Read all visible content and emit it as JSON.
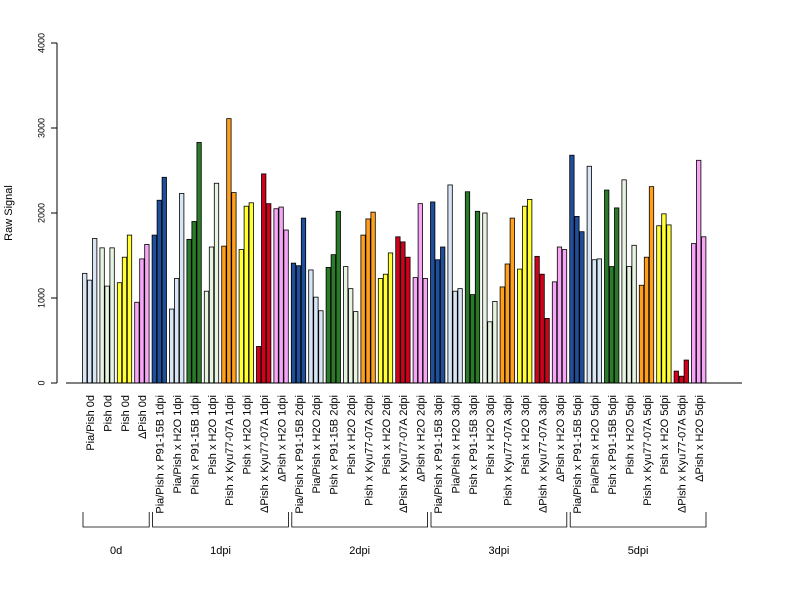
{
  "chart_data": {
    "type": "bar",
    "ylabel": "Raw Signal",
    "xlabel": "",
    "title": "",
    "ylim": [
      0,
      4000
    ],
    "yticks": [
      0,
      1000,
      2000,
      3000,
      4000
    ],
    "colors": {
      "Pia/Pish": "#d7e5f5",
      "Pish": "#e6f4e1",
      "PishYellow": "#ffff33",
      "dPish": "#f7a6f7",
      "P91": "#1f4e9a",
      "P91green": "#2a7a2a",
      "Kyu": "#ff9f1c",
      "KyuRed": "#d0021b"
    },
    "categories": [
      {
        "label": "Pia/Pish 0d",
        "color": "#d7e5f5",
        "values": [
          1290,
          1210,
          1700
        ]
      },
      {
        "label": "Pish 0d",
        "color": "#e6f4e1",
        "values": [
          1590,
          1140,
          1590
        ]
      },
      {
        "label": "Pish 0d",
        "color": "#ffff33",
        "values": [
          1180,
          1480,
          1740
        ]
      },
      {
        "label": "ΔPish 0d",
        "color": "#f7a6f7",
        "values": [
          950,
          1460,
          1630
        ]
      },
      {
        "label": "Pia/Pish x P91-15B 1dpi",
        "color": "#1f4e9a",
        "values": [
          1740,
          2150,
          2420
        ]
      },
      {
        "label": "Pia/Pish x H2O 1dpi",
        "color": "#d7e5f5",
        "values": [
          870,
          1230,
          2230
        ]
      },
      {
        "label": "Pish x P91-15B 1dpi",
        "color": "#2a7a2a",
        "values": [
          1690,
          1900,
          2830
        ]
      },
      {
        "label": "Pish x H2O 1dpi",
        "color": "#e6f4e1",
        "values": [
          1080,
          1600,
          2350
        ]
      },
      {
        "label": "Pish x Kyu77-07A 1dpi",
        "color": "#ff9f1c",
        "values": [
          1610,
          3110,
          2240
        ]
      },
      {
        "label": "Pish x H2O 1dpi",
        "color": "#ffff33",
        "values": [
          1570,
          2080,
          2120
        ]
      },
      {
        "label": "ΔPish x Kyu77-07A 1dpi",
        "color": "#d0021b",
        "values": [
          430,
          2460,
          2110
        ]
      },
      {
        "label": "ΔPish x H2O 1dpi",
        "color": "#f7a6f7",
        "values": [
          2050,
          2070,
          1800
        ]
      },
      {
        "label": "Pia/Pish x P91-15B 2dpi",
        "color": "#1f4e9a",
        "values": [
          1410,
          1380,
          1940
        ]
      },
      {
        "label": "Pia/Pish x H2O 2dpi",
        "color": "#d7e5f5",
        "values": [
          1330,
          1010,
          850
        ]
      },
      {
        "label": "Pish x P91-15B 2dpi",
        "color": "#2a7a2a",
        "values": [
          1360,
          1510,
          2020
        ]
      },
      {
        "label": "Pish x H2O 2dpi",
        "color": "#e6f4e1",
        "values": [
          1370,
          1110,
          840
        ]
      },
      {
        "label": "Pish x Kyu77-07A 2dpi",
        "color": "#ff9f1c",
        "values": [
          1740,
          1930,
          2010
        ]
      },
      {
        "label": "Pish x H2O 2dpi",
        "color": "#ffff33",
        "values": [
          1230,
          1280,
          1530
        ]
      },
      {
        "label": "ΔPish x Kyu77-07A 2dpi",
        "color": "#d0021b",
        "values": [
          1720,
          1660,
          1480
        ]
      },
      {
        "label": "ΔPish x H2O 2dpi",
        "color": "#f7a6f7",
        "values": [
          1240,
          2110,
          1230
        ]
      },
      {
        "label": "Pia/Pish x P91-15B 3dpi",
        "color": "#1f4e9a",
        "values": [
          2130,
          1450,
          1600
        ]
      },
      {
        "label": "Pia/Pish x H2O 3dpi",
        "color": "#d7e5f5",
        "values": [
          2330,
          1080,
          1110
        ]
      },
      {
        "label": "Pish x P91-15B 3dpi",
        "color": "#2a7a2a",
        "values": [
          2250,
          1040,
          2020
        ]
      },
      {
        "label": "Pish x H2O 3dpi",
        "color": "#e6f4e1",
        "values": [
          2000,
          720,
          960
        ]
      },
      {
        "label": "Pish x Kyu77-07A 3dpi",
        "color": "#ff9f1c",
        "values": [
          1130,
          1400,
          1940
        ]
      },
      {
        "label": "Pish x H2O 3dpi",
        "color": "#ffff33",
        "values": [
          1340,
          2080,
          2160
        ]
      },
      {
        "label": "ΔPish x Kyu77-07A 3dpi",
        "color": "#d0021b",
        "values": [
          1490,
          1280,
          760
        ]
      },
      {
        "label": "ΔPish x H2O 3dpi",
        "color": "#f7a6f7",
        "values": [
          1190,
          1600,
          1570
        ]
      },
      {
        "label": "Pia/Pish x P91-15B 5dpi",
        "color": "#1f4e9a",
        "values": [
          2680,
          1960,
          1780
        ]
      },
      {
        "label": "Pia/Pish x H2O 5dpi",
        "color": "#d7e5f5",
        "values": [
          2550,
          1450,
          1460
        ]
      },
      {
        "label": "Pish x P91-15B 5dpi",
        "color": "#2a7a2a",
        "values": [
          2270,
          1370,
          2060
        ]
      },
      {
        "label": "Pish x H2O 5dpi",
        "color": "#e6f4e1",
        "values": [
          2390,
          1370,
          1620
        ]
      },
      {
        "label": "Pish x Kyu77-07A 5dpi",
        "color": "#ff9f1c",
        "values": [
          1150,
          1480,
          2310
        ]
      },
      {
        "label": "Pish x H2O 5dpi",
        "color": "#ffff33",
        "values": [
          1850,
          1990,
          1860
        ]
      },
      {
        "label": "ΔPish x Kyu77-07A 5dpi",
        "color": "#d0021b",
        "values": [
          140,
          80,
          270
        ]
      },
      {
        "label": "ΔPish x H2O 5dpi",
        "color": "#f7a6f7",
        "values": [
          1640,
          2620,
          1720
        ]
      }
    ],
    "groups": [
      {
        "label": "0d",
        "from": 0,
        "to": 3
      },
      {
        "label": "1dpi",
        "from": 4,
        "to": 11
      },
      {
        "label": "2dpi",
        "from": 12,
        "to": 19
      },
      {
        "label": "3dpi",
        "from": 20,
        "to": 27
      },
      {
        "label": "5dpi",
        "from": 28,
        "to": 35
      }
    ]
  }
}
